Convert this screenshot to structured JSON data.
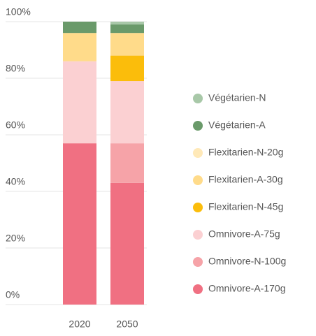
{
  "chart_data": {
    "type": "stacked-bar",
    "categories": [
      "2020",
      "2050"
    ],
    "series": [
      {
        "name": "Omnivore-A-170g",
        "color": "#f07082",
        "values": [
          57,
          43
        ]
      },
      {
        "name": "Omnivore-N-100g",
        "color": "#f6a3a8",
        "values": [
          0,
          14
        ]
      },
      {
        "name": "Omnivore-A-75g",
        "color": "#fbd0d2",
        "values": [
          29,
          22
        ]
      },
      {
        "name": "Flexitarien-N-45g",
        "color": "#fbbd0b",
        "values": [
          0,
          9
        ]
      },
      {
        "name": "Flexitarien-A-30g",
        "color": "#ffdb8a",
        "values": [
          10,
          8
        ]
      },
      {
        "name": "Flexitarien-N-20g",
        "color": "#ffe9b8",
        "values": [
          0,
          0
        ]
      },
      {
        "name": "Végétarien-A",
        "color": "#6a9a6a",
        "values": [
          4,
          3
        ]
      },
      {
        "name": "Végétarien-N",
        "color": "#a8c8a8",
        "values": [
          0,
          1
        ]
      }
    ],
    "ylim": [
      0,
      100
    ],
    "yticks": [
      {
        "value": 0,
        "label": "0%"
      },
      {
        "value": 20,
        "label": "20%"
      },
      {
        "value": 40,
        "label": "40%"
      },
      {
        "value": 60,
        "label": "60%"
      },
      {
        "value": 80,
        "label": "80%"
      },
      {
        "value": 100,
        "label": "100%"
      }
    ],
    "grid": true
  }
}
